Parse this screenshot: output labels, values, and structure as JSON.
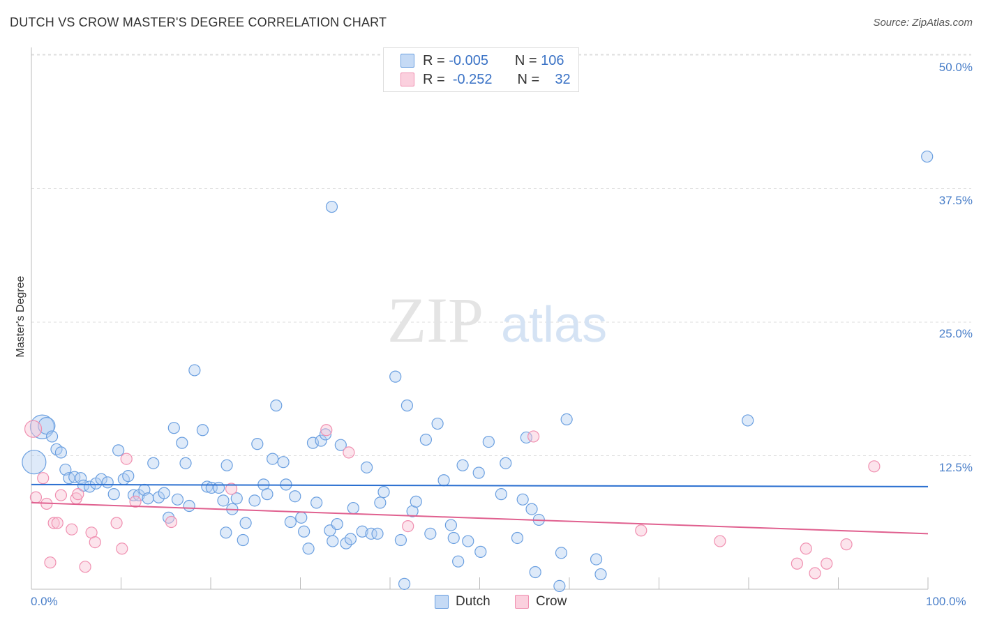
{
  "header": {
    "title": "DUTCH VS CROW MASTER'S DEGREE CORRELATION CHART",
    "source": "Source: ZipAtlas.com"
  },
  "watermark": {
    "zip": "ZIP",
    "atlas": "atlas"
  },
  "legend": {
    "rows": [
      {
        "r_label": "R =",
        "r_value": "-0.005",
        "n_label": "N =",
        "n_value": "106",
        "color": "#6a9fe0"
      },
      {
        "r_label": "R =",
        "r_value": "-0.252",
        "n_label": "N =",
        "n_value": "32",
        "color": "#f08fb0"
      }
    ]
  },
  "bottom_legend": {
    "dutch": "Dutch",
    "crow": "Crow"
  },
  "axes": {
    "ylabel": "Master's Degree",
    "xmin_label": "0.0%",
    "xmax_label": "100.0%",
    "yticks": [
      "50.0%",
      "37.5%",
      "25.0%",
      "12.5%"
    ]
  },
  "chart_data": {
    "type": "scatter",
    "xlim": [
      0,
      100
    ],
    "ylim": [
      0,
      50
    ],
    "ylabel": "Master's Degree",
    "grid": true,
    "colors": {
      "dutch": "#6a9fe0",
      "crow": "#f08fb0",
      "dutch_line": "#2a6fd0",
      "crow_line": "#e0608f"
    },
    "series": [
      {
        "name": "Dutch",
        "trend": {
          "x": [
            0,
            100
          ],
          "y": [
            9.8,
            9.6
          ]
        },
        "points": [
          [
            1.2,
            15.2,
            3
          ],
          [
            0.3,
            11.9,
            3
          ],
          [
            1.7,
            15.3,
            2
          ],
          [
            2.3,
            14.3,
            1
          ],
          [
            2.8,
            13.1,
            1
          ],
          [
            3.3,
            12.8,
            1
          ],
          [
            3.8,
            11.2,
            1
          ],
          [
            4.2,
            10.4,
            1
          ],
          [
            4.8,
            10.5,
            1
          ],
          [
            5.5,
            10.4,
            1
          ],
          [
            5.8,
            9.7,
            1
          ],
          [
            6.5,
            9.6,
            1
          ],
          [
            7.2,
            9.9,
            1
          ],
          [
            7.8,
            10.3,
            1
          ],
          [
            8.5,
            10.0,
            1
          ],
          [
            9.2,
            8.9,
            1
          ],
          [
            9.7,
            13.0,
            1
          ],
          [
            10.3,
            10.3,
            1
          ],
          [
            10.8,
            10.6,
            1
          ],
          [
            11.4,
            8.8,
            1
          ],
          [
            12.0,
            8.8,
            1
          ],
          [
            12.6,
            9.3,
            1
          ],
          [
            13.0,
            8.5,
            1
          ],
          [
            13.6,
            11.8,
            1
          ],
          [
            14.2,
            8.6,
            1
          ],
          [
            14.8,
            9.0,
            1
          ],
          [
            15.3,
            6.7,
            1
          ],
          [
            15.9,
            15.1,
            1
          ],
          [
            16.3,
            8.4,
            1
          ],
          [
            16.8,
            13.7,
            1
          ],
          [
            17.2,
            11.8,
            1
          ],
          [
            17.6,
            7.8,
            1
          ],
          [
            18.2,
            20.5,
            1
          ],
          [
            19.1,
            14.9,
            1
          ],
          [
            19.6,
            9.6,
            1
          ],
          [
            20.1,
            9.5,
            1
          ],
          [
            20.9,
            9.5,
            1
          ],
          [
            21.4,
            8.3,
            1
          ],
          [
            21.8,
            11.6,
            1
          ],
          [
            21.7,
            5.3,
            1
          ],
          [
            22.4,
            7.5,
            1
          ],
          [
            22.9,
            8.5,
            1
          ],
          [
            23.6,
            4.6,
            1
          ],
          [
            23.9,
            6.2,
            1
          ],
          [
            24.9,
            8.3,
            1
          ],
          [
            25.2,
            13.6,
            1
          ],
          [
            25.9,
            9.8,
            1
          ],
          [
            26.3,
            8.9,
            1
          ],
          [
            26.9,
            12.2,
            1
          ],
          [
            27.3,
            17.2,
            1
          ],
          [
            28.1,
            11.9,
            1
          ],
          [
            28.4,
            9.8,
            1
          ],
          [
            28.9,
            6.3,
            1
          ],
          [
            29.4,
            8.7,
            1
          ],
          [
            30.1,
            6.7,
            1
          ],
          [
            30.4,
            5.4,
            1
          ],
          [
            30.9,
            3.8,
            1
          ],
          [
            31.4,
            13.7,
            1
          ],
          [
            31.8,
            8.1,
            1
          ],
          [
            32.3,
            13.9,
            1
          ],
          [
            32.8,
            14.5,
            1
          ],
          [
            33.3,
            5.5,
            1
          ],
          [
            33.6,
            4.5,
            1
          ],
          [
            34.1,
            6.1,
            1
          ],
          [
            34.5,
            13.5,
            1
          ],
          [
            35.1,
            4.3,
            1
          ],
          [
            35.6,
            4.7,
            1
          ],
          [
            35.9,
            7.6,
            1
          ],
          [
            33.5,
            35.8,
            1
          ],
          [
            36.9,
            5.4,
            1
          ],
          [
            37.4,
            11.4,
            1
          ],
          [
            37.9,
            5.2,
            1
          ],
          [
            38.6,
            5.2,
            1
          ],
          [
            38.9,
            8.1,
            1
          ],
          [
            39.3,
            9.1,
            1
          ],
          [
            40.6,
            19.9,
            1
          ],
          [
            41.9,
            17.2,
            1
          ],
          [
            41.2,
            4.6,
            1
          ],
          [
            41.6,
            0.5,
            1
          ],
          [
            42.5,
            7.3,
            1
          ],
          [
            42.9,
            8.2,
            1
          ],
          [
            44.0,
            14.0,
            1
          ],
          [
            44.5,
            5.2,
            1
          ],
          [
            45.3,
            15.5,
            1
          ],
          [
            46.0,
            10.2,
            1
          ],
          [
            46.8,
            6.0,
            1
          ],
          [
            47.1,
            4.8,
            1
          ],
          [
            47.6,
            2.6,
            1
          ],
          [
            48.1,
            11.6,
            1
          ],
          [
            48.7,
            4.5,
            1
          ],
          [
            49.9,
            10.9,
            1
          ],
          [
            50.1,
            3.5,
            1
          ],
          [
            51.0,
            13.8,
            1
          ],
          [
            52.4,
            8.9,
            1
          ],
          [
            52.9,
            11.8,
            1
          ],
          [
            54.2,
            4.8,
            1
          ],
          [
            54.8,
            8.4,
            1
          ],
          [
            55.2,
            14.2,
            1
          ],
          [
            55.8,
            7.5,
            1
          ],
          [
            56.2,
            1.6,
            1
          ],
          [
            56.6,
            6.5,
            1
          ],
          [
            59.1,
            3.4,
            1
          ],
          [
            58.9,
            0.3,
            1
          ],
          [
            59.7,
            15.9,
            1
          ],
          [
            63.0,
            2.8,
            1
          ],
          [
            63.5,
            1.4,
            1
          ],
          [
            79.9,
            15.8,
            1
          ],
          [
            99.9,
            40.5,
            1
          ]
        ]
      },
      {
        "name": "Crow",
        "trend": {
          "x": [
            0,
            100
          ],
          "y": [
            8.1,
            5.2
          ]
        },
        "points": [
          [
            0.2,
            15.0,
            2
          ],
          [
            0.5,
            8.6,
            1
          ],
          [
            1.3,
            10.4,
            1
          ],
          [
            1.7,
            8.0,
            1
          ],
          [
            2.1,
            2.5,
            1
          ],
          [
            2.5,
            6.2,
            1
          ],
          [
            2.9,
            6.2,
            1
          ],
          [
            3.3,
            8.8,
            1
          ],
          [
            4.5,
            5.6,
            1
          ],
          [
            5.0,
            8.5,
            1
          ],
          [
            5.2,
            8.9,
            1
          ],
          [
            6.0,
            2.1,
            1
          ],
          [
            6.7,
            5.3,
            1
          ],
          [
            7.1,
            4.4,
            1
          ],
          [
            9.5,
            6.2,
            1
          ],
          [
            10.1,
            3.8,
            1
          ],
          [
            10.6,
            12.2,
            1
          ],
          [
            11.6,
            8.2,
            1
          ],
          [
            15.6,
            6.3,
            1
          ],
          [
            22.3,
            9.4,
            1
          ],
          [
            32.9,
            14.9,
            1
          ],
          [
            35.4,
            12.8,
            1
          ],
          [
            42.0,
            5.9,
            1
          ],
          [
            56.0,
            14.3,
            1
          ],
          [
            68.0,
            5.5,
            1
          ],
          [
            76.8,
            4.5,
            1
          ],
          [
            85.4,
            2.4,
            1
          ],
          [
            86.4,
            3.8,
            1
          ],
          [
            87.4,
            1.5,
            1
          ],
          [
            88.7,
            2.4,
            1
          ],
          [
            90.9,
            4.2,
            1
          ],
          [
            94.0,
            11.5,
            1
          ]
        ]
      }
    ]
  }
}
